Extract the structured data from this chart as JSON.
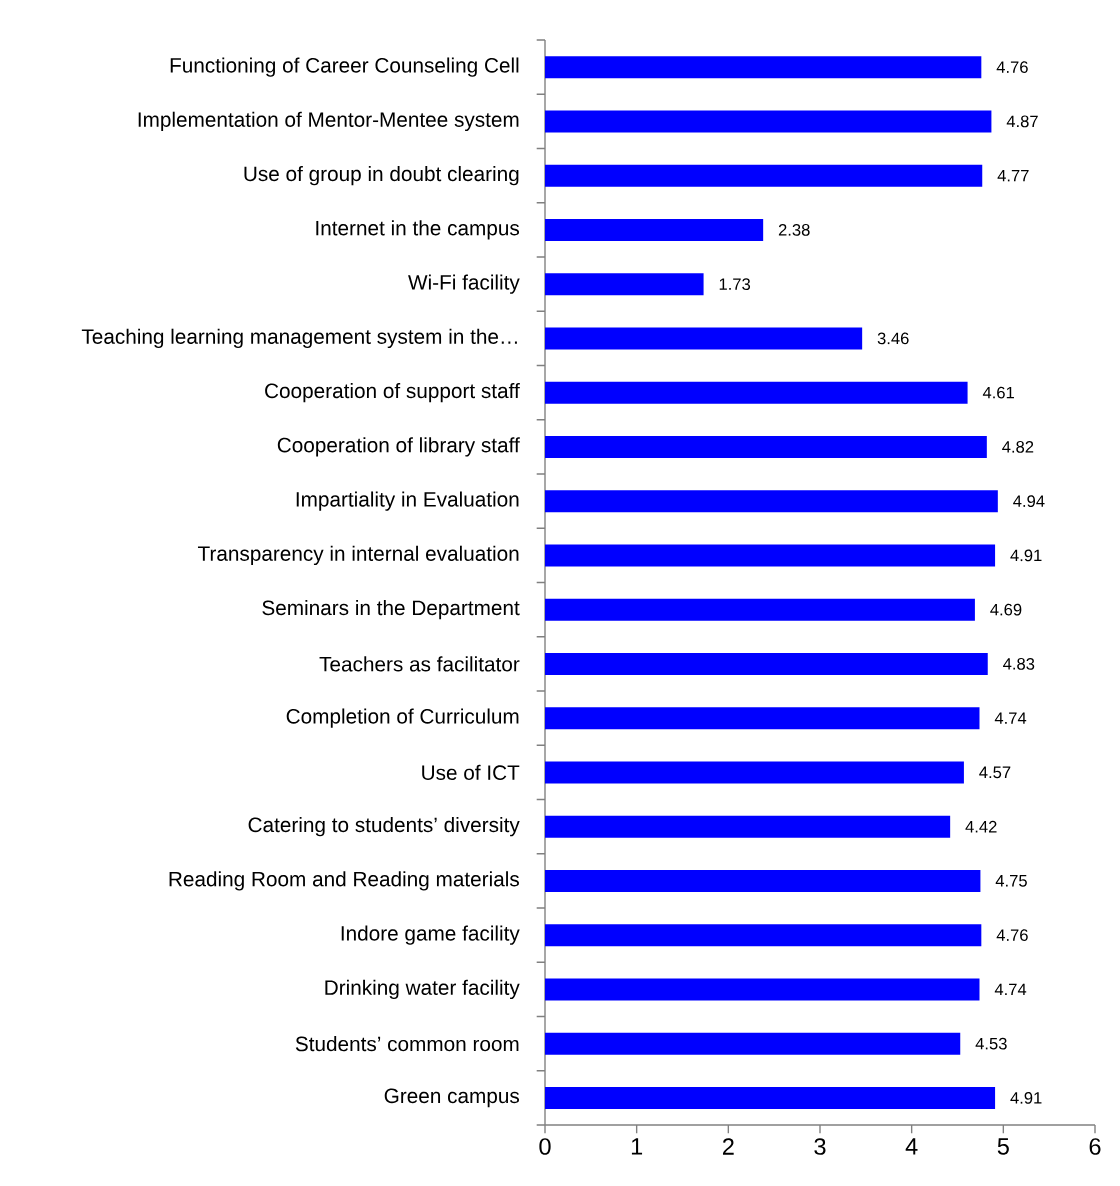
{
  "chart_data": {
    "type": "bar",
    "orientation": "horizontal",
    "categories": [
      "Functioning of Career Counseling Cell",
      "Implementation of Mentor-Mentee system",
      "Use of group in doubt clearing",
      "Internet in the campus",
      "Wi-Fi facility",
      "Teaching learning management system in the…",
      "Cooperation of support staff",
      "Cooperation of library staff",
      "Impartiality in Evaluation",
      "Transparency in internal evaluation",
      "Seminars in the Department",
      "Teachers as facilitator",
      "Completion of Curriculum",
      "Use of ICT",
      "Catering to students’ diversity",
      "Reading Room and Reading materials",
      "Indore game facility",
      "Drinking water facility",
      "Students’ common room",
      "Green campus"
    ],
    "values": [
      4.76,
      4.87,
      4.77,
      2.38,
      1.73,
      3.46,
      4.61,
      4.82,
      4.94,
      4.91,
      4.69,
      4.83,
      4.74,
      4.57,
      4.42,
      4.75,
      4.76,
      4.74,
      4.53,
      4.91
    ],
    "color": "#0000ff",
    "xlim": [
      0,
      6
    ],
    "xticks": [
      0,
      1,
      2,
      3,
      4,
      5,
      6
    ],
    "data_labels": true
  }
}
